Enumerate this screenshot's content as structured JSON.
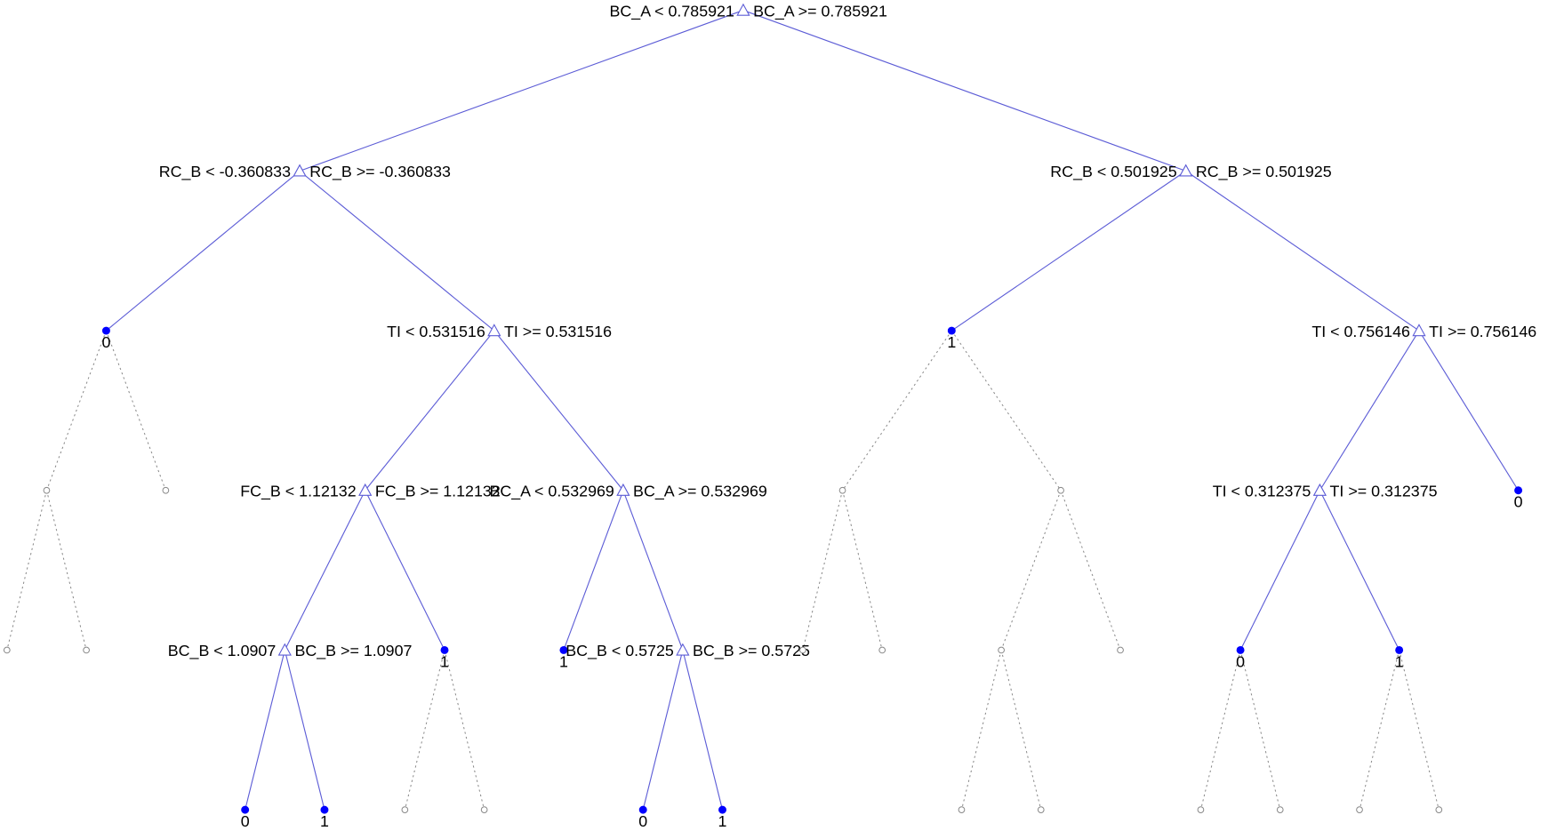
{
  "colors": {
    "branch": "#5c5cd6",
    "leaf": "#0000ff",
    "pruned": "#888888",
    "text": "#000000"
  },
  "nodes": [
    {
      "id": "n1",
      "type": "split",
      "left_rule": "BC_A < 0.785921",
      "right_rule": "BC_A >= 0.785921",
      "children": [
        "n2",
        "n3"
      ]
    },
    {
      "id": "n2",
      "type": "split",
      "left_rule": "RC_B < -0.360833",
      "right_rule": "RC_B >= -0.360833",
      "children": [
        "n4",
        "n5"
      ]
    },
    {
      "id": "n3",
      "type": "split",
      "left_rule": "RC_B < 0.501925",
      "right_rule": "RC_B >= 0.501925",
      "children": [
        "n6",
        "n7"
      ]
    },
    {
      "id": "n4",
      "type": "leaf",
      "class": "0",
      "children": [
        "n8",
        "n9"
      ]
    },
    {
      "id": "n5",
      "type": "split",
      "left_rule": "TI < 0.531516",
      "right_rule": "TI >= 0.531516",
      "children": [
        "n10",
        "n11"
      ]
    },
    {
      "id": "n6",
      "type": "leaf",
      "class": "1",
      "children": [
        "n12",
        "n13"
      ]
    },
    {
      "id": "n7",
      "type": "split",
      "left_rule": "TI < 0.756146",
      "right_rule": "TI >= 0.756146",
      "children": [
        "n14",
        "n15"
      ]
    },
    {
      "id": "n8",
      "type": "pruned",
      "children": [
        "n16",
        "n17"
      ]
    },
    {
      "id": "n9",
      "type": "pruned",
      "children": []
    },
    {
      "id": "n10",
      "type": "split",
      "left_rule": "FC_B < 1.12132",
      "right_rule": "FC_B >= 1.12132",
      "children": [
        "n18",
        "n19"
      ]
    },
    {
      "id": "n11",
      "type": "split",
      "left_rule": "BC_A < 0.532969",
      "right_rule": "BC_A >= 0.532969",
      "children": [
        "n20",
        "n21"
      ]
    },
    {
      "id": "n12",
      "type": "pruned",
      "children": [
        "n22",
        "n23"
      ]
    },
    {
      "id": "n13",
      "type": "pruned",
      "children": [
        "n24",
        "n25"
      ]
    },
    {
      "id": "n14",
      "type": "split",
      "left_rule": "TI < 0.312375",
      "right_rule": "TI >= 0.312375",
      "children": [
        "n26",
        "n27"
      ]
    },
    {
      "id": "n15",
      "type": "leaf",
      "class": "0",
      "children": []
    },
    {
      "id": "n16",
      "type": "pruned",
      "children": []
    },
    {
      "id": "n17",
      "type": "pruned",
      "children": []
    },
    {
      "id": "n18",
      "type": "split",
      "left_rule": "BC_B < 1.0907",
      "right_rule": "BC_B >= 1.0907",
      "children": [
        "n28",
        "n29"
      ]
    },
    {
      "id": "n19",
      "type": "leaf",
      "class": "1",
      "children": [
        "n30",
        "n31"
      ]
    },
    {
      "id": "n20",
      "type": "leaf",
      "class": "1",
      "children": []
    },
    {
      "id": "n21",
      "type": "split",
      "left_rule": "BC_B < 0.5725",
      "right_rule": "BC_B >= 0.5725",
      "children": [
        "n32",
        "n33"
      ]
    },
    {
      "id": "n22",
      "type": "pruned",
      "children": []
    },
    {
      "id": "n23",
      "type": "pruned",
      "children": []
    },
    {
      "id": "n24",
      "type": "pruned",
      "children": [
        "n34",
        "n35"
      ]
    },
    {
      "id": "n25",
      "type": "pruned",
      "children": []
    },
    {
      "id": "n26",
      "type": "leaf",
      "class": "0",
      "children": [
        "n36",
        "n37"
      ]
    },
    {
      "id": "n27",
      "type": "leaf",
      "class": "1",
      "children": [
        "n38",
        "n39"
      ]
    },
    {
      "id": "n28",
      "type": "leaf",
      "class": "0",
      "children": []
    },
    {
      "id": "n29",
      "type": "leaf",
      "class": "1",
      "children": []
    },
    {
      "id": "n30",
      "type": "pruned",
      "children": []
    },
    {
      "id": "n31",
      "type": "pruned",
      "children": []
    },
    {
      "id": "n32",
      "type": "leaf",
      "class": "0",
      "children": []
    },
    {
      "id": "n33",
      "type": "leaf",
      "class": "1",
      "children": []
    },
    {
      "id": "n34",
      "type": "pruned",
      "children": []
    },
    {
      "id": "n35",
      "type": "pruned",
      "children": []
    },
    {
      "id": "n36",
      "type": "pruned",
      "children": []
    },
    {
      "id": "n37",
      "type": "pruned",
      "children": []
    },
    {
      "id": "n38",
      "type": "pruned",
      "children": []
    },
    {
      "id": "n39",
      "type": "pruned",
      "children": []
    }
  ]
}
